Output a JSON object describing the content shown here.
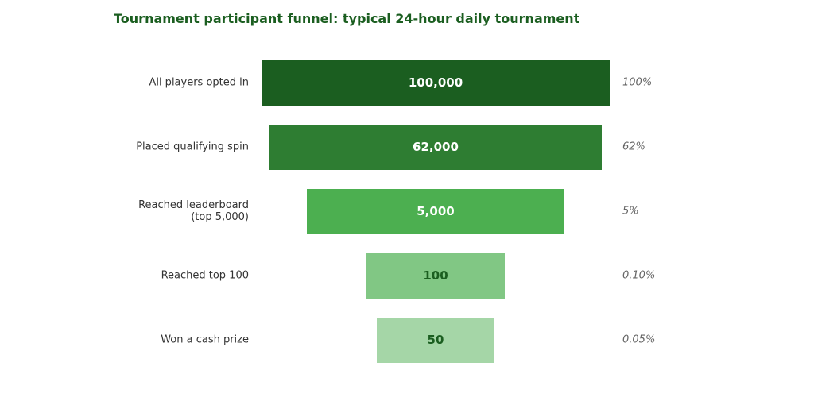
{
  "chart_data": {
    "type": "funnel",
    "title": "Tournament participant funnel: typical 24-hour daily tournament",
    "categories": [
      "All players opted in",
      "Placed qualifying spin",
      "Reached leaderboard\n(top 5,000)",
      "Reached top 100",
      "Won a cash prize"
    ],
    "values": [
      100000,
      62000,
      5000,
      100,
      50
    ],
    "value_labels": [
      "100,000",
      "62,000",
      "5,000",
      "100",
      "50"
    ],
    "percents": [
      100,
      62,
      5,
      0.1,
      0.05
    ],
    "percent_labels": [
      "100%",
      "62%",
      "5%",
      "0.10%",
      "0.05%"
    ],
    "colors": [
      "#1b5e20",
      "#2e7d32",
      "#4caf50",
      "#81c784",
      "#a5d6a7"
    ],
    "log_scale": true
  }
}
